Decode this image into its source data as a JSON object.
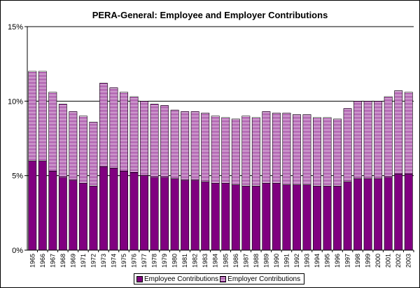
{
  "chart_data": {
    "type": "bar",
    "stacked": true,
    "title": "PERA-General:  Employee and Employer Contributions",
    "xlabel": "",
    "ylabel": "",
    "ylim": [
      0,
      15
    ],
    "yticks": [
      "0%",
      "5%",
      "10%",
      "15%"
    ],
    "ytick_values": [
      0,
      5,
      10,
      15
    ],
    "grid": "horizontal",
    "legend_position": "bottom",
    "categories": [
      "1965",
      "1966",
      "1967",
      "1968",
      "1969",
      "1971",
      "1972",
      "1973",
      "1974",
      "1975",
      "1976",
      "1977",
      "1978",
      "1979",
      "1980",
      "1981",
      "1982",
      "1983",
      "1984",
      "1985",
      "1986",
      "1987",
      "1988",
      "1989",
      "1990",
      "1991",
      "1992",
      "1993",
      "1994",
      "1995",
      "1996",
      "1997",
      "1998",
      "1999",
      "2000",
      "2001",
      "2002",
      "2003"
    ],
    "series": [
      {
        "name": "Employee Contributions",
        "color": "#800080",
        "pattern": "solid",
        "values": [
          6.0,
          6.0,
          5.3,
          4.9,
          4.7,
          4.5,
          4.3,
          5.6,
          5.5,
          5.3,
          5.2,
          5.0,
          4.9,
          4.9,
          4.8,
          4.7,
          4.7,
          4.6,
          4.5,
          4.5,
          4.4,
          4.3,
          4.3,
          4.5,
          4.5,
          4.4,
          4.4,
          4.4,
          4.3,
          4.3,
          4.3,
          4.6,
          4.8,
          4.8,
          4.8,
          4.9,
          5.1,
          5.1
        ]
      },
      {
        "name": "Employer Contributions",
        "color": "#800080",
        "pattern": "horizontal-stripes",
        "values": [
          6.0,
          6.0,
          5.3,
          4.9,
          4.6,
          4.5,
          4.3,
          5.6,
          5.4,
          5.3,
          5.1,
          5.0,
          4.9,
          4.8,
          4.6,
          4.6,
          4.6,
          4.6,
          4.5,
          4.4,
          4.4,
          4.7,
          4.6,
          4.8,
          4.7,
          4.8,
          4.7,
          4.7,
          4.6,
          4.6,
          4.5,
          4.9,
          5.2,
          5.2,
          5.2,
          5.4,
          5.6,
          5.5
        ]
      }
    ]
  }
}
